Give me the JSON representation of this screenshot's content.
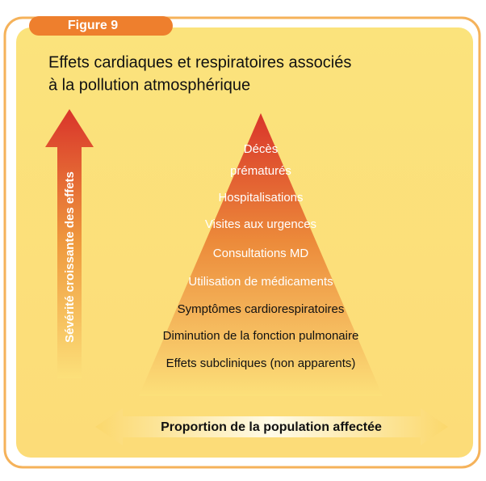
{
  "figure_label": "Figure 9",
  "title": [
    "Effets cardiaques et respiratoires associés",
    "à la pollution atmosphérique"
  ],
  "severity_arrow_label": "Sévérité croissante des effets",
  "levels": [
    [
      "Décès",
      "prématurés"
    ],
    [
      "Hospitalisations"
    ],
    [
      "Visites aux urgences"
    ],
    [
      "Consultations MD"
    ],
    [
      "Utilisation de médicaments"
    ],
    [
      "Symptômes cardiorespiratoires"
    ],
    [
      "Diminution de la fonction pulmonaire"
    ],
    [
      "Effets subcliniques (non apparents)"
    ]
  ],
  "population_arrow_label": "Proportion de la population affectée"
}
